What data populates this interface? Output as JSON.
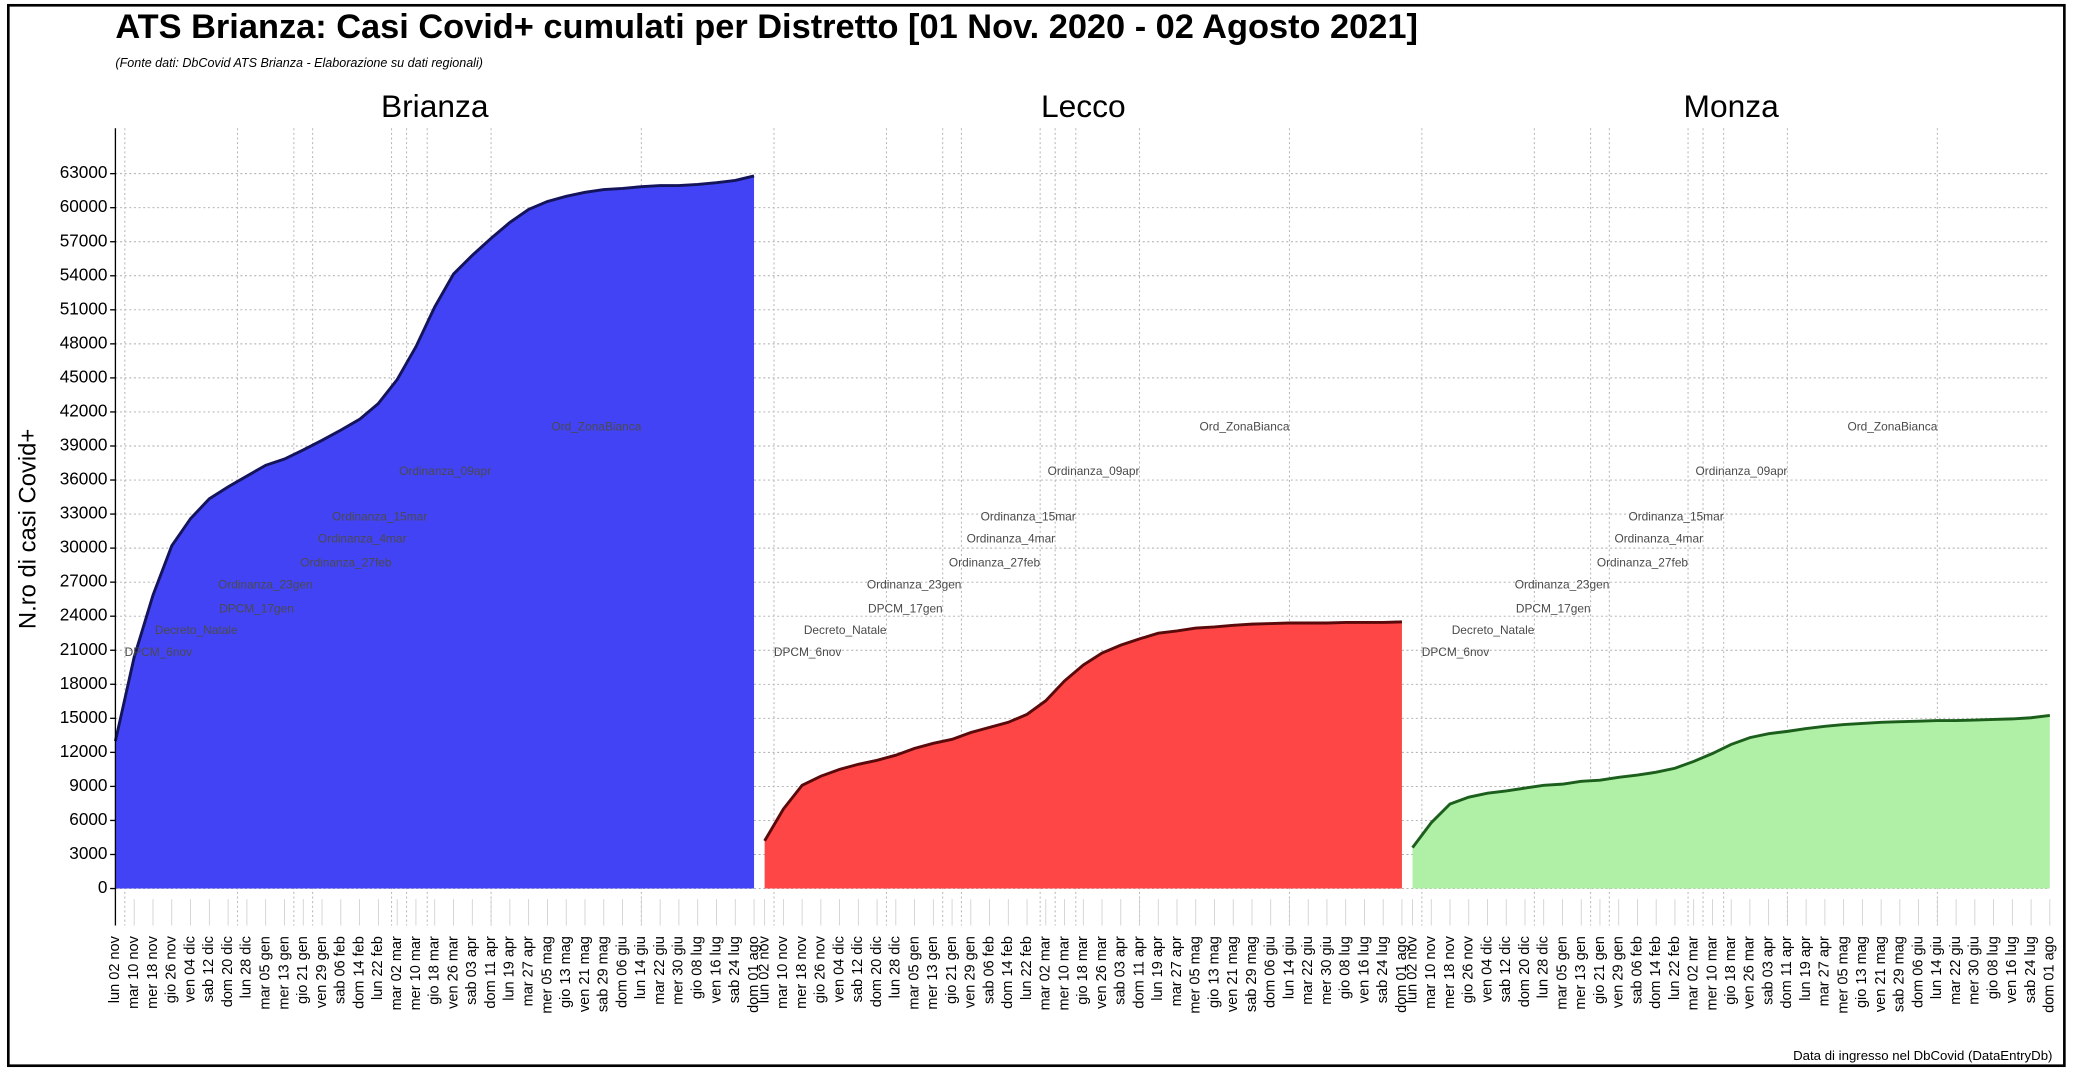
{
  "chart_data": {
    "type": "area",
    "title": "ATS Brianza: Casi Covid+ cumulati per Distretto [01 Nov. 2020 - 02 Agosto 2021]",
    "subtitle": "(Fonte dati: DbCovid ATS Brianza - Elaborazione su dati regionali)",
    "y_label": "N.ro di casi Covid+",
    "footer": "Data di ingresso nel DbCovid (DataEntryDb)",
    "categories": [
      "lun 02 nov",
      "mar 10 nov",
      "mer 18 nov",
      "gio 26 nov",
      "ven 04 dic",
      "sab 12 dic",
      "dom 20 dic",
      "lun 28 dic",
      "mar 05 gen",
      "mer 13 gen",
      "gio 21 gen",
      "ven 29 gen",
      "sab 06 feb",
      "dom 14 feb",
      "lun 22 feb",
      "mar 02 mar",
      "mer 10 mar",
      "gio 18 mar",
      "ven 26 mar",
      "sab 03 apr",
      "dom 11 apr",
      "lun 19 apr",
      "mar 27 apr",
      "mer 05 mag",
      "gio 13 mag",
      "ven 21 mag",
      "sab 29 mag",
      "dom 06 giu",
      "lun 14 giu",
      "mar 22 giu",
      "mer 30 giu",
      "gio 08 lug",
      "ven 16 lug",
      "sab 24 lug",
      "dom 01 ago"
    ],
    "ylim": [
      0,
      67000
    ],
    "yticks": [
      0,
      3000,
      6000,
      9000,
      12000,
      15000,
      18000,
      21000,
      24000,
      27000,
      30000,
      33000,
      36000,
      39000,
      42000,
      45000,
      48000,
      51000,
      54000,
      57000,
      60000,
      63000
    ],
    "grid": true,
    "series": [
      {
        "name": "Brianza",
        "color": "#4343f6",
        "line_color": "#14145a",
        "values": [
          13000,
          20400,
          25850,
          30200,
          32600,
          34350,
          35400,
          36350,
          37300,
          37850,
          38650,
          39500,
          40400,
          41350,
          42750,
          44850,
          47750,
          51250,
          54150,
          55800,
          57300,
          58700,
          59850,
          60550,
          61000,
          61350,
          61600,
          61700,
          61850,
          61950,
          61950,
          62050,
          62200,
          62400,
          62800
        ]
      },
      {
        "name": "Lecco",
        "color": "#ff4646",
        "line_color": "#5a0a0a",
        "values": [
          4200,
          7000,
          9100,
          9900,
          10500,
          10950,
          11300,
          11750,
          12350,
          12800,
          13150,
          13750,
          14200,
          14650,
          15350,
          16550,
          18300,
          19700,
          20750,
          21450,
          22000,
          22500,
          22700,
          22950,
          23050,
          23200,
          23300,
          23350,
          23400,
          23400,
          23400,
          23450,
          23450,
          23450,
          23500
        ]
      },
      {
        "name": "Monza",
        "color": "#b0f0a6",
        "line_color": "#1c5e1c",
        "values": [
          3600,
          5800,
          7450,
          8050,
          8400,
          8600,
          8850,
          9100,
          9200,
          9450,
          9550,
          9800,
          10000,
          10250,
          10600,
          11200,
          11900,
          12700,
          13300,
          13650,
          13850,
          14100,
          14300,
          14450,
          14550,
          14650,
          14700,
          14750,
          14800,
          14800,
          14850,
          14900,
          14950,
          15050,
          15250
        ]
      }
    ],
    "annotations": [
      {
        "label": "DPCM_6nov",
        "x": 0.5,
        "y": 20750
      },
      {
        "label": "Decreto_Natale",
        "x": 6.5,
        "y": 22700
      },
      {
        "label": "DPCM_17gen",
        "x": 9.5,
        "y": 24600
      },
      {
        "label": "Ordinanza_23gen",
        "x": 10.5,
        "y": 26700
      },
      {
        "label": "Ordinanza_27feb",
        "x": 14.7,
        "y": 28650
      },
      {
        "label": "Ordinanza_4mar",
        "x": 15.5,
        "y": 30750
      },
      {
        "label": "Ordinanza_15mar",
        "x": 16.6,
        "y": 32700
      },
      {
        "label": "Ordinanza_09apr",
        "x": 20.0,
        "y": 36700
      },
      {
        "label": "Ord_ZonaBianca",
        "x": 28.0,
        "y": 40650
      }
    ]
  }
}
